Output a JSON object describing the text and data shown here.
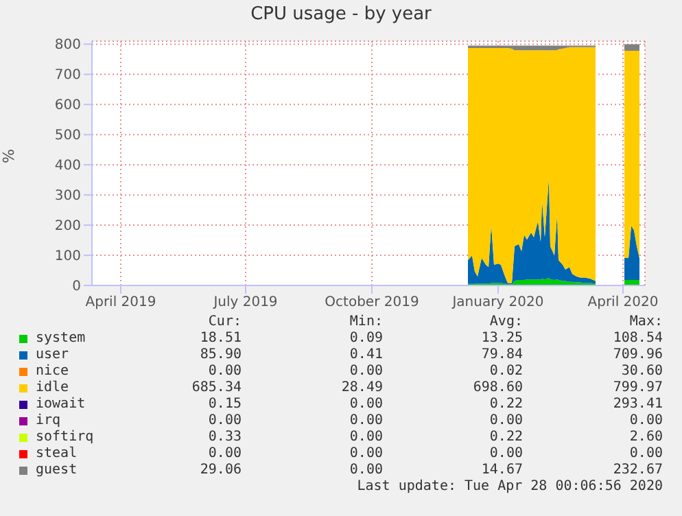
{
  "chart_data": {
    "type": "area",
    "title": "CPU usage - by year",
    "ylabel": "%",
    "stacked": true,
    "grid": true,
    "legend": "bottom",
    "marker": "none",
    "x": [
      "2019-12-25",
      "2019-12-28",
      "2019-12-30",
      "2020-01-01",
      "2020-01-04",
      "2020-01-07",
      "2020-01-09",
      "2020-01-11",
      "2020-01-13",
      "2020-01-16",
      "2020-01-18",
      "2020-01-21",
      "2020-01-23",
      "2020-01-26",
      "2020-01-28",
      "2020-01-31",
      "2020-02-02",
      "2020-02-04",
      "2020-02-06",
      "2020-02-09",
      "2020-02-11",
      "2020-02-14",
      "2020-02-16",
      "2020-02-17",
      "2020-02-19",
      "2020-02-22",
      "2020-02-23",
      "2020-02-26",
      "2020-02-28",
      "2020-02-29",
      "2020-03-03",
      "2020-03-05",
      "2020-03-08",
      "2020-03-10",
      "2020-03-13",
      "2020-03-16",
      "2020-03-19",
      "2020-03-23",
      "2020-03-27",
      "2020-04-05",
      "2020-04-17",
      "2020-04-20",
      "2020-04-22",
      "2020-04-24",
      "2020-04-26",
      "2020-04-28"
    ],
    "xlim": [
      "2019-03-26",
      "2020-05-02"
    ],
    "xticks": [
      {
        "value": "2019-04-16",
        "label": "April 2019"
      },
      {
        "value": "2019-07-16",
        "label": "July 2019"
      },
      {
        "value": "2019-10-16",
        "label": "October 2019"
      },
      {
        "value": "2020-01-16",
        "label": "January 2020"
      },
      {
        "value": "2020-04-16",
        "label": "April 2020"
      }
    ],
    "ylim": [
      0,
      810
    ],
    "yticks": [
      0,
      100,
      200,
      300,
      400,
      500,
      600,
      700,
      800
    ],
    "series": [
      {
        "name": "system",
        "color": "#00cc00",
        "values": [
          5,
          5,
          5,
          6,
          6,
          6,
          6,
          8,
          8,
          8,
          8,
          6,
          4,
          4,
          15,
          18,
          18,
          18,
          20,
          20,
          20,
          20,
          20,
          22,
          20,
          25,
          20,
          18,
          20,
          18,
          15,
          15,
          12,
          12,
          10,
          10,
          8,
          8,
          6,
          null,
          18,
          18,
          18,
          18,
          18,
          18
        ]
      },
      {
        "name": "user",
        "color": "#0066b3",
        "values": [
          79,
          94,
          41,
          24,
          85,
          63,
          55,
          192,
          61,
          64,
          61,
          24,
          4,
          4,
          115,
          119,
          96,
          150,
          132,
          155,
          140,
          193,
          125,
          260,
          140,
          333,
          110,
          81,
          216,
          66,
          54,
          38,
          49,
          26,
          20,
          16,
          18,
          15,
          9,
          null,
          73,
          73,
          180,
          165,
          112,
          73
        ]
      },
      {
        "name": "nice",
        "color": "#ff8000",
        "values": [
          null,
          null,
          null,
          null,
          null,
          null,
          null,
          null,
          null,
          null,
          null,
          null,
          null,
          null,
          null,
          null,
          null,
          null,
          null,
          null,
          null,
          null,
          null,
          null,
          null,
          null,
          null,
          null,
          null,
          null,
          null,
          null,
          null,
          null,
          null,
          null,
          null,
          null,
          null,
          null,
          null,
          null,
          null,
          null,
          null,
          null
        ]
      },
      {
        "name": "idle",
        "color": "#ffcc00",
        "values": [
          703,
          688,
          741,
          757,
          696,
          718,
          726,
          587,
          718,
          715,
          718,
          757,
          779,
          777,
          650,
          643,
          666,
          612,
          628,
          605,
          620,
          567,
          635,
          498,
          620,
          422,
          650,
          681,
          544,
          699,
          716,
          734,
          729,
          752,
          760,
          764,
          764,
          767,
          775,
          null,
          687,
          687,
          580,
          595,
          648,
          687
        ]
      },
      {
        "name": "iowait",
        "color": "#330099",
        "values": [
          null,
          null,
          null,
          null,
          null,
          null,
          null,
          null,
          null,
          null,
          null,
          null,
          null,
          null,
          null,
          null,
          null,
          null,
          null,
          null,
          null,
          null,
          null,
          null,
          null,
          null,
          null,
          null,
          null,
          null,
          null,
          null,
          null,
          null,
          null,
          null,
          null,
          null,
          null,
          null,
          null,
          null,
          null,
          null,
          null,
          null
        ]
      },
      {
        "name": "irq",
        "color": "#990099",
        "values": [
          null,
          null,
          null,
          null,
          null,
          null,
          null,
          null,
          null,
          null,
          null,
          null,
          null,
          null,
          null,
          null,
          null,
          null,
          null,
          null,
          null,
          null,
          null,
          null,
          null,
          null,
          null,
          null,
          null,
          null,
          null,
          null,
          null,
          null,
          null,
          null,
          null,
          null,
          null,
          null,
          null,
          null,
          null,
          null,
          null,
          null
        ]
      },
      {
        "name": "softirq",
        "color": "#ccff00",
        "values": [
          null,
          null,
          null,
          null,
          null,
          null,
          null,
          null,
          null,
          null,
          null,
          null,
          null,
          null,
          null,
          null,
          null,
          null,
          null,
          null,
          null,
          null,
          null,
          null,
          null,
          null,
          null,
          null,
          null,
          null,
          null,
          null,
          null,
          null,
          null,
          null,
          null,
          null,
          null,
          null,
          null,
          null,
          null,
          null,
          null,
          null
        ]
      },
      {
        "name": "steal",
        "color": "#ff0000",
        "values": [
          null,
          null,
          null,
          null,
          null,
          null,
          null,
          null,
          null,
          null,
          null,
          null,
          null,
          null,
          null,
          null,
          null,
          null,
          null,
          null,
          null,
          null,
          null,
          null,
          null,
          null,
          null,
          null,
          null,
          null,
          null,
          null,
          null,
          null,
          null,
          null,
          null,
          null,
          null,
          null,
          null,
          null,
          null,
          null,
          null,
          null
        ]
      },
      {
        "name": "guest",
        "color": "#808080",
        "values": [
          8,
          8,
          8,
          8,
          8,
          8,
          8,
          8,
          8,
          8,
          8,
          8,
          8,
          10,
          15,
          15,
          15,
          15,
          15,
          15,
          15,
          15,
          15,
          15,
          15,
          15,
          15,
          15,
          15,
          12,
          10,
          8,
          5,
          5,
          5,
          5,
          5,
          5,
          5,
          null,
          22,
          22,
          22,
          22,
          22,
          22
        ]
      }
    ],
    "annotations": [
      "Cur:",
      "Min:",
      "Avg:",
      "Max:",
      "18.51",
      "0.09",
      "13.25",
      "108.54",
      "85.90",
      "0.41",
      "79.84",
      "709.96",
      "0.00",
      "0.00",
      "0.02",
      "30.60",
      "685.34",
      "28.49",
      "698.60",
      "799.97",
      "0.15",
      "0.00",
      "0.22",
      "293.41",
      "0.00",
      "0.00",
      "0.00",
      "0.00",
      "0.33",
      "0.00",
      "0.22",
      "2.60",
      "0.00",
      "0.00",
      "0.00",
      "0.00",
      "29.06",
      "0.00",
      "14.67",
      "232.67",
      "Last update: Tue Apr 28 00:06:56 2020"
    ]
  }
}
